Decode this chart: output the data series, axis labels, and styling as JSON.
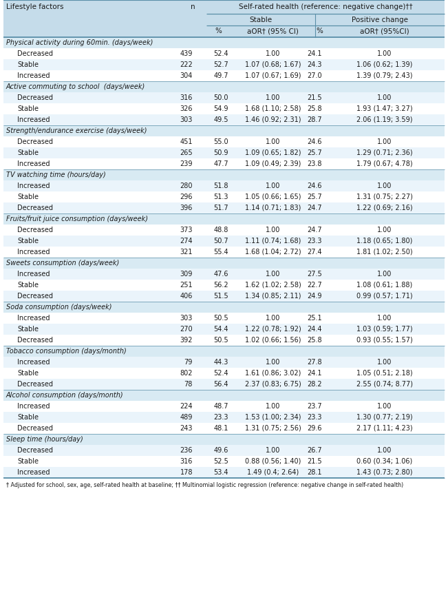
{
  "header_bg": "#c5dcea",
  "section_bg": "#d8eaf3",
  "row_bg_white": "#ffffff",
  "row_bg_light": "#eaf4fb",
  "line_color": "#5a8fa8",
  "col_header1": "Self-rated health (reference: negative change)††",
  "col_stable": "Stable",
  "col_positive": "Positive change",
  "col_pct": "%",
  "col_aor1": "aOR† (95% CI)",
  "col_aor2": "aOR† (95%CI)",
  "col_lf": "Lifestyle factors",
  "col_n": "n",
  "footnote": "† Adjusted for school, sex, age, self-rated health at baseline; †† Multinomial logistic regression (reference: negative change in self-rated health)",
  "sections": [
    {
      "name": "Physical activity during 60min. (days/week)",
      "rows": [
        [
          "Decreased",
          "439",
          "52.4",
          "1.00",
          "24.1",
          "1.00"
        ],
        [
          "Stable",
          "222",
          "52.7",
          "1.07 (0.68; 1.67)",
          "24.3",
          "1.06 (0.62; 1.39)"
        ],
        [
          "Increased",
          "304",
          "49.7",
          "1.07 (0.67; 1.69)",
          "27.0",
          "1.39 (0.79; 2.43)"
        ]
      ]
    },
    {
      "name": "Active commuting to school  (days/week)",
      "rows": [
        [
          "Decreased",
          "316",
          "50.0",
          "1.00",
          "21.5",
          "1.00"
        ],
        [
          "Stable",
          "326",
          "54.9",
          "1.68 (1.10; 2.58)",
          "25.8",
          "1.93 (1.47; 3.27)"
        ],
        [
          "Increased",
          "303",
          "49.5",
          "1.46 (0.92; 2.31)",
          "28.7",
          "2.06 (1.19; 3.59)"
        ]
      ]
    },
    {
      "name": "Strength/endurance exercise (days/week)",
      "rows": [
        [
          "Decreased",
          "451",
          "55.0",
          "1.00",
          "24.6",
          "1.00"
        ],
        [
          "Stable",
          "265",
          "50.9",
          "1.09 (0.65; 1.82)",
          "25.7",
          "1.29 (0.71; 2.36)"
        ],
        [
          "Increased",
          "239",
          "47.7",
          "1.09 (0.49; 2.39)",
          "23.8",
          "1.79 (0.67; 4.78)"
        ]
      ]
    },
    {
      "name": "TV watching time (hours/day)",
      "rows": [
        [
          "Increased",
          "280",
          "51.8",
          "1.00",
          "24.6",
          "1.00"
        ],
        [
          "Stable",
          "296",
          "51.3",
          "1.05 (0.66; 1.65)",
          "25.7",
          "1.31 (0.75; 2.27)"
        ],
        [
          "Decreased",
          "396",
          "51.7",
          "1.14 (0.71; 1.83)",
          "24.7",
          "1.22 (0.69; 2.16)"
        ]
      ]
    },
    {
      "name": "Fruits/fruit juice consumption (days/week)",
      "rows": [
        [
          "Decreased",
          "373",
          "48.8",
          "1.00",
          "24.7",
          "1.00"
        ],
        [
          "Stable",
          "274",
          "50.7",
          "1.11 (0.74; 1.68)",
          "23.3",
          "1.18 (0.65; 1.80)"
        ],
        [
          "Increased",
          "321",
          "55.4",
          "1.68 (1.04; 2.72)",
          "27.4",
          "1.81 (1.02; 2.50)"
        ]
      ]
    },
    {
      "name": "Sweets consumption (days/week)",
      "rows": [
        [
          "Increased",
          "309",
          "47.6",
          "1.00",
          "27.5",
          "1.00"
        ],
        [
          "Stable",
          "251",
          "56.2",
          "1.62 (1.02; 2.58)",
          "22.7",
          "1.08 (0.61; 1.88)"
        ],
        [
          "Decreased",
          "406",
          "51.5",
          "1.34 (0.85; 2.11)",
          "24.9",
          "0.99 (0.57; 1.71)"
        ]
      ]
    },
    {
      "name": "Soda consumption (days/week)",
      "rows": [
        [
          "Increased",
          "303",
          "50.5",
          "1.00",
          "25.1",
          "1.00"
        ],
        [
          "Stable",
          "270",
          "54.4",
          "1.22 (0.78; 1.92)",
          "24.4",
          "1.03 (0.59; 1.77)"
        ],
        [
          "Decreased",
          "392",
          "50.5",
          "1.02 (0.66; 1.56)",
          "25.8",
          "0.93 (0.55; 1.57)"
        ]
      ]
    },
    {
      "name": "Tobacco consumption (days/month)",
      "rows": [
        [
          "Increased",
          "79",
          "44.3",
          "1.00",
          "27.8",
          "1.00"
        ],
        [
          "Stable",
          "802",
          "52.4",
          "1.61 (0.86; 3.02)",
          "24.1",
          "1.05 (0.51; 2.18)"
        ],
        [
          "Decreased",
          "78",
          "56.4",
          "2.37 (0.83; 6.75)",
          "28.2",
          "2.55 (0.74; 8.77)"
        ]
      ]
    },
    {
      "name": "Alcohol consumption (days/month)",
      "rows": [
        [
          "Increased",
          "224",
          "48.7",
          "1.00",
          "23.7",
          "1.00"
        ],
        [
          "Stable",
          "489",
          "23.3",
          "1.53 (1.00; 2.34)",
          "23.3",
          "1.30 (0.77; 2.19)"
        ],
        [
          "Decreased",
          "243",
          "48.1",
          "1.31 (0.75; 2.56)",
          "29.6",
          "2.17 (1.11; 4.23)"
        ]
      ]
    },
    {
      "name": "Sleep time (hours/day)",
      "rows": [
        [
          "Decreased",
          "236",
          "49.6",
          "1.00",
          "26.7",
          "1.00"
        ],
        [
          "Stable",
          "316",
          "52.5",
          "0.88 (0.56; 1.40)",
          "21.5",
          "0.60 (0.34; 1.06)"
        ],
        [
          "Increased",
          "178",
          "53.4",
          "1.49 (0.4; 2.64)",
          "28.1",
          "1.43 (0.73; 2.80)"
        ]
      ]
    }
  ]
}
